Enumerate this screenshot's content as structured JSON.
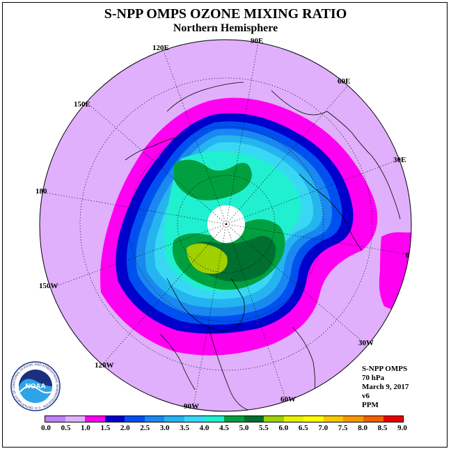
{
  "header": {
    "title": "S-NPP OMPS OZONE MIXING RATIO",
    "subtitle": "Northern Hemisphere"
  },
  "longitude_labels": [
    {
      "key": "90E",
      "text": "90E"
    },
    {
      "key": "60E",
      "text": "60E"
    },
    {
      "key": "30E",
      "text": "30E"
    },
    {
      "key": "0",
      "text": "0"
    },
    {
      "key": "30W",
      "text": "30W"
    },
    {
      "key": "60W",
      "text": "60W"
    },
    {
      "key": "90W",
      "text": "90W"
    },
    {
      "key": "120W",
      "text": "120W"
    },
    {
      "key": "150W",
      "text": "150W"
    },
    {
      "key": "180",
      "text": "180"
    },
    {
      "key": "150E",
      "text": "150E"
    },
    {
      "key": "120E",
      "text": "120E"
    }
  ],
  "info": {
    "instrument": "S-NPP OMPS",
    "pressure": "70 hPa",
    "date": "March 9, 2017",
    "version": "v6",
    "units": "PPM"
  },
  "logo": {
    "text": "NOAA",
    "ring_text": "NATIONAL OCEANIC AND ATMOSPHERIC ADMINISTRATION · U.S. DEPARTMENT OF COMMERCE",
    "colors": {
      "navy": "#1c2f7f",
      "sky": "#2ea3e8",
      "white": "#ffffff"
    }
  },
  "colorbar": {
    "ticks": [
      "0.0",
      "0.5",
      "1.0",
      "1.5",
      "2.0",
      "2.5",
      "3.0",
      "3.5",
      "4.0",
      "4.5",
      "5.0",
      "5.5",
      "6.0",
      "6.5",
      "7.0",
      "7.5",
      "8.0",
      "8.5",
      "9.0"
    ],
    "colors": [
      "#c080f8",
      "#e0b0fc",
      "#ff00f0",
      "#0000cc",
      "#0050f0",
      "#1a88f0",
      "#24b4f0",
      "#38d8f4",
      "#20f0d0",
      "#00a040",
      "#007030",
      "#a0d000",
      "#e8f000",
      "#ffff00",
      "#f8c800",
      "#f89800",
      "#f06000",
      "#e80000",
      "#904830"
    ]
  },
  "map_colors": {
    "background_disc": "#e0b0fc",
    "pole_hole": "#ffffff",
    "coastline": "#000000"
  }
}
